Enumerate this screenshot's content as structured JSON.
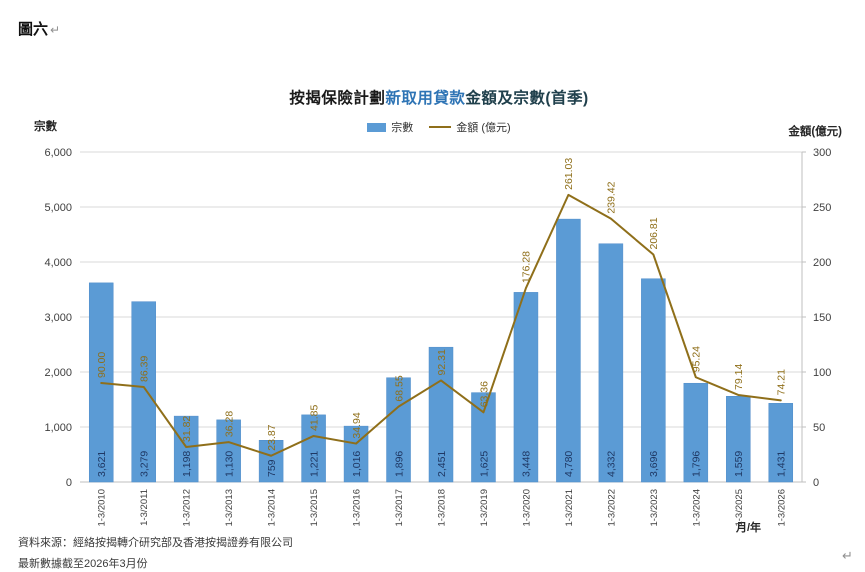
{
  "figure_label": "圖六",
  "paragraph_mark": "↵",
  "title": {
    "part1": "按揭保險計劃",
    "part2": "新取用貸款",
    "part3": "金額及宗數(首季)"
  },
  "legend": {
    "items": [
      {
        "label": "宗數",
        "marker": "bar-swatch"
      },
      {
        "label": "金額 (億元)",
        "marker": "line-swatch"
      }
    ]
  },
  "axes": {
    "left_title": "宗數",
    "right_title": "金額(億元)",
    "x_title": "月/年",
    "left_ticks": [
      "0",
      "1,000",
      "2,000",
      "3,000",
      "4,000",
      "5,000",
      "6,000"
    ],
    "right_ticks": [
      "0",
      "50",
      "100",
      "150",
      "200",
      "250",
      "300"
    ],
    "left_max": 6000,
    "right_max": 300
  },
  "chart_data": {
    "type": "combo",
    "title": "按揭保險計劃新取用貸款金額及宗數(首季)",
    "categories": [
      "1-3/2010",
      "1-3/2011",
      "1-3/2012",
      "1-3/2013",
      "1-3/2014",
      "1-3/2015",
      "1-3/2016",
      "1-3/2017",
      "1-3/2018",
      "1-3/2019",
      "1-3/2020",
      "1-3/2021",
      "1-3/2022",
      "1-3/2023",
      "1-3/2024",
      "1-3/2025",
      "1-3/2026"
    ],
    "series": [
      {
        "name": "宗數",
        "type": "bar",
        "axis": "left",
        "color": "#5B9BD5",
        "values": [
          3621,
          3279,
          1198,
          1130,
          759,
          1221,
          1016,
          1896,
          2451,
          1625,
          3448,
          4780,
          4332,
          3696,
          1796,
          1559,
          1431
        ],
        "labels": [
          "3,621",
          "3,279",
          "1,198",
          "1,130",
          "759",
          "1,221",
          "1,016",
          "1,896",
          "2,451",
          "1,625",
          "3,448",
          "4,780",
          "4,332",
          "3,696",
          "1,796",
          "1,559",
          "1,431"
        ]
      },
      {
        "name": "金額 (億元)",
        "type": "line",
        "axis": "right",
        "color": "#8F6F1A",
        "values": [
          90.0,
          86.39,
          31.82,
          36.28,
          23.87,
          41.85,
          34.94,
          68.55,
          92.31,
          63.36,
          176.28,
          261.03,
          239.42,
          206.81,
          95.24,
          79.14,
          74.21
        ],
        "labels": [
          "90.00",
          "86.39",
          "31.82",
          "36.28",
          "23.87",
          "41.85",
          "34.94",
          "68.55",
          "92.31",
          "63.36",
          "176.28",
          "261.03",
          "239.42",
          "206.81",
          "95.24",
          "79.14",
          "74.21"
        ]
      }
    ],
    "ylim_left": [
      0,
      6000
    ],
    "ylim_right": [
      0,
      300
    ],
    "xlabel": "月/年",
    "ylabel_left": "宗數",
    "ylabel_right": "金額(億元)",
    "legend_position": "top",
    "grid": "horizontal"
  },
  "footer": {
    "source": "資料來源：經絡按揭轉介研究部及香港按揭證券有限公司",
    "note": "最新數據截至2026年3月份"
  },
  "colors": {
    "bar": "#5B9BD5",
    "bar_stroke": "#4F8CC9",
    "bar_label": "#1F3864",
    "line": "#8F6F1A",
    "grid": "#D9D9D9",
    "axis_line": "#BFBFBF",
    "tick_text": "#404040",
    "title_blue": "#2E74B5"
  }
}
